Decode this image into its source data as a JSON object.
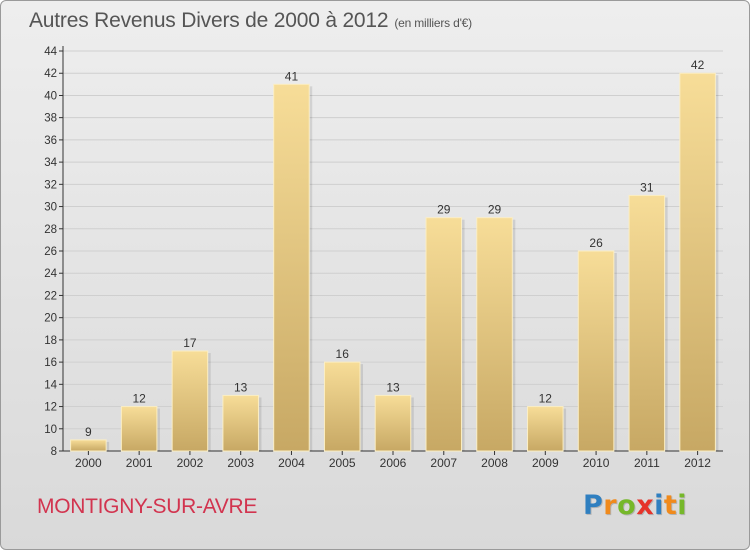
{
  "header": {
    "title": "Autres Revenus Divers de 2000 à 2012",
    "unit": "(en milliers d'€)"
  },
  "footer": {
    "commune": "MONTIGNY-SUR-AVRE",
    "brand": "Proxiti",
    "brand_letters": [
      {
        "char": "P",
        "color": "#2f7fc0"
      },
      {
        "char": "r",
        "color": "#f08a1c"
      },
      {
        "char": "o",
        "color": "#76b82a"
      },
      {
        "char": "x",
        "color": "#e6332a"
      },
      {
        "char": "i",
        "color": "#2f7fc0"
      },
      {
        "char": "t",
        "color": "#f08a1c"
      },
      {
        "char": "i",
        "color": "#76b82a"
      }
    ]
  },
  "colors": {
    "bar_light": "#f7dd98",
    "bar_dark": "#c7a864",
    "axis": "#333333",
    "grid": "#cfcfcf",
    "text": "#333333",
    "commune": "#d2344f"
  },
  "chart_data": {
    "type": "bar",
    "title": "Autres Revenus Divers de 2000 à 2012",
    "subtitle": "(en milliers d'€)",
    "xlabel": "",
    "ylabel": "",
    "categories": [
      "2000",
      "2001",
      "2002",
      "2003",
      "2004",
      "2005",
      "2006",
      "2007",
      "2008",
      "2009",
      "2010",
      "2011",
      "2012"
    ],
    "values": [
      9,
      12,
      17,
      13,
      41,
      16,
      13,
      29,
      29,
      12,
      26,
      31,
      42
    ],
    "ylim": [
      8,
      44
    ],
    "yticks": [
      8,
      10,
      12,
      14,
      16,
      18,
      20,
      22,
      24,
      26,
      28,
      30,
      32,
      34,
      36,
      38,
      40,
      42,
      44
    ],
    "grid": true,
    "legend": "none"
  }
}
